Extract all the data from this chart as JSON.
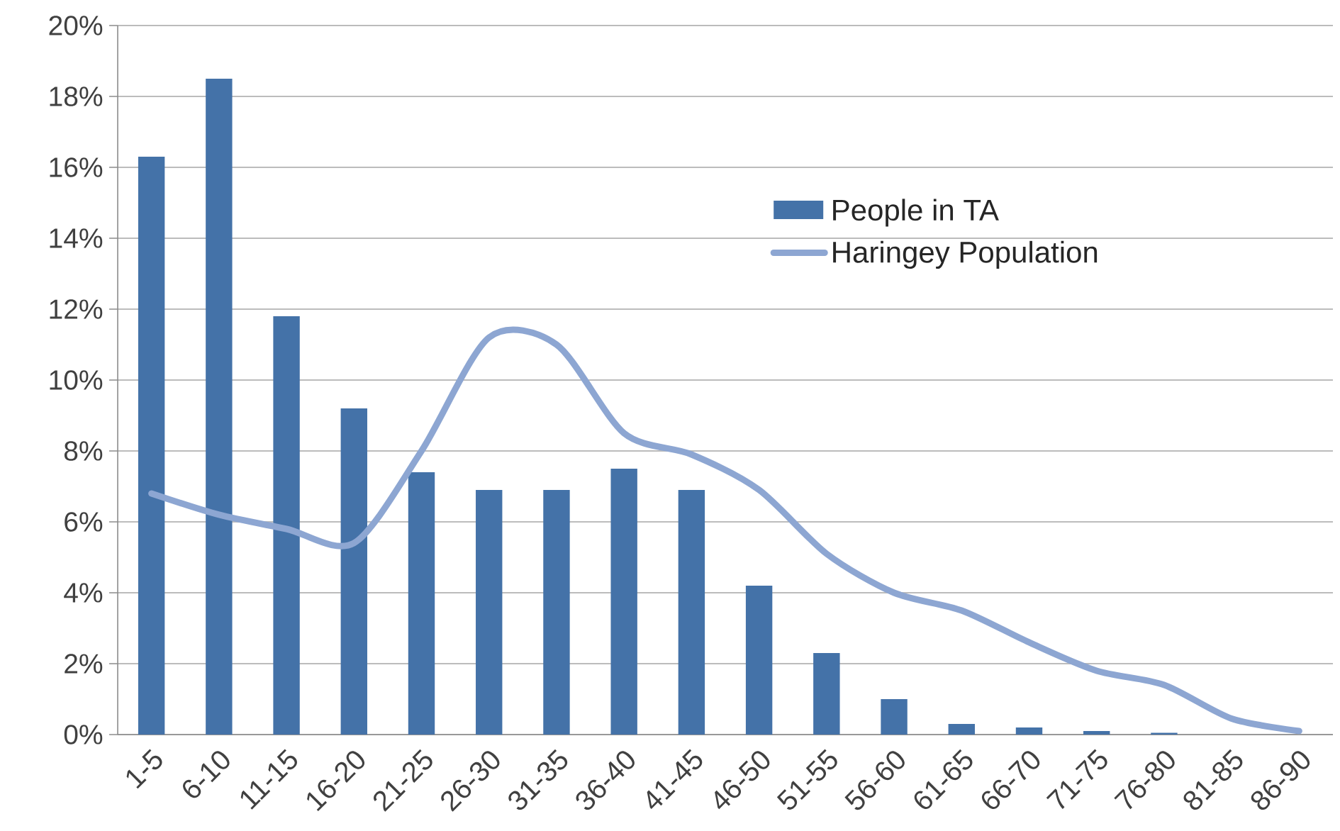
{
  "chart_data": {
    "type": "bar",
    "categories": [
      "1-5",
      "6-10",
      "11-15",
      "16-20",
      "21-25",
      "26-30",
      "31-35",
      "36-40",
      "41-45",
      "46-50",
      "51-55",
      "56-60",
      "61-65",
      "66-70",
      "71-75",
      "76-80",
      "81-85",
      "86-90"
    ],
    "series": [
      {
        "name": "People in TA",
        "color": "#4472a8",
        "values": [
          16.3,
          18.5,
          11.8,
          9.2,
          7.4,
          6.9,
          6.9,
          7.5,
          6.9,
          4.2,
          2.3,
          1.0,
          0.3,
          0.2,
          0.1,
          0.05,
          0,
          0
        ]
      },
      {
        "name": "Haringey Population",
        "type": "line",
        "color": "#8da6d2",
        "values": [
          6.8,
          6.2,
          5.8,
          5.4,
          8.0,
          11.2,
          11.0,
          8.5,
          7.9,
          6.9,
          5.1,
          4.0,
          3.5,
          2.6,
          1.8,
          1.4,
          0.45,
          0.1
        ]
      }
    ],
    "ylim": [
      0,
      20
    ],
    "yticks": [
      {
        "value": 0,
        "label": "0%"
      },
      {
        "value": 2,
        "label": "2%"
      },
      {
        "value": 4,
        "label": "4%"
      },
      {
        "value": 6,
        "label": "6%"
      },
      {
        "value": 8,
        "label": "8%"
      },
      {
        "value": 10,
        "label": "10%"
      },
      {
        "value": 12,
        "label": "12%"
      },
      {
        "value": 14,
        "label": "14%"
      },
      {
        "value": 16,
        "label": "16%"
      },
      {
        "value": 18,
        "label": "18%"
      },
      {
        "value": 20,
        "label": "20%"
      }
    ],
    "grid": "y",
    "legend": "top right"
  }
}
